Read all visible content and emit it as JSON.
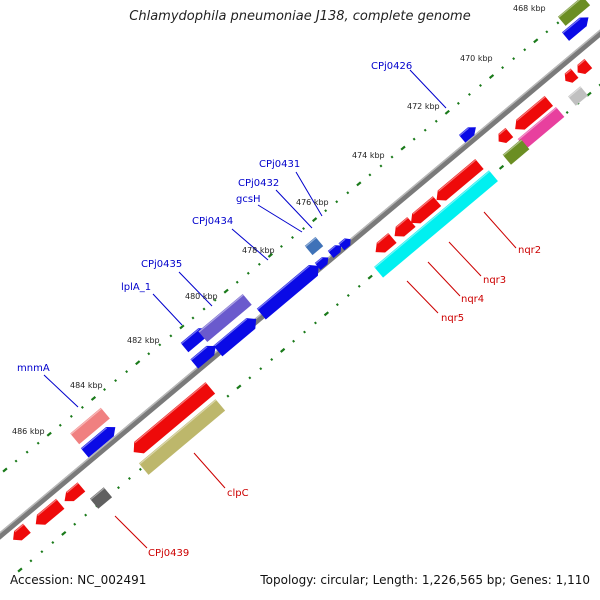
{
  "title": "Chlamydophila pneumoniae J138, complete genome",
  "accession": "Accession: NC_002491",
  "genome_stats": "Topology: circular; Length: 1,226,565 bp; Genes: 1,110",
  "colors": {
    "backbone": "#7a7a7a",
    "forward_label": "#0000cc",
    "reverse_label": "#cc0000",
    "tick": "#1a7a1a"
  },
  "kbp_ticks": [
    "468 kbp",
    "470 kbp",
    "472 kbp",
    "474 kbp",
    "476 kbp",
    "478 kbp",
    "480 kbp",
    "482 kbp",
    "484 kbp",
    "486 kbp"
  ],
  "forward_gene_labels": [
    "CPj0426",
    "CPj0431",
    "CPj0432",
    "gcsH",
    "CPj0434",
    "CPj0435",
    "lplA_1",
    "mnmA"
  ],
  "reverse_gene_labels": [
    "nqr2",
    "nqr3",
    "nqr4",
    "nqr5",
    "clpC",
    "CPj0439"
  ]
}
